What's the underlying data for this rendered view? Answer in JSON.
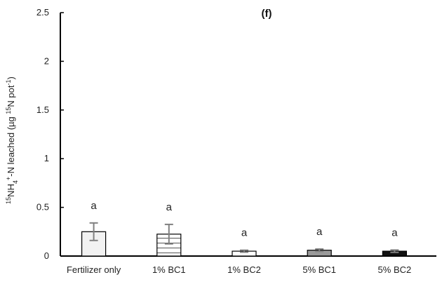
{
  "chart_data": {
    "type": "bar",
    "title": "(f)",
    "ylabel_parts": [
      "15",
      "NH",
      "4",
      "+",
      "-N leached (µg ",
      "15",
      "N pot",
      "-1",
      ")"
    ],
    "xlabel": "",
    "ylim": [
      0,
      2.5
    ],
    "yticks": [
      0,
      0.5,
      1,
      1.5,
      2,
      2.5
    ],
    "ytick_labels": [
      "0",
      "0.5",
      "1",
      "1.5",
      "2",
      "2.5"
    ],
    "grid": false,
    "categories": [
      "Fertilizer only",
      "1% BC1",
      "1% BC2",
      "5% BC1",
      "5% BC2"
    ],
    "values": [
      0.25,
      0.225,
      0.05,
      0.06,
      0.05
    ],
    "errors": [
      0.09,
      0.1,
      0.01,
      0.012,
      0.012
    ],
    "significance": [
      "a",
      "a",
      "a",
      "a",
      "a"
    ],
    "bar_styles": [
      {
        "fill": "#f2f2f2",
        "pattern": "none"
      },
      {
        "fill": "#ffffff",
        "pattern": "horizontal-lines"
      },
      {
        "fill": "#ffffff",
        "pattern": "none"
      },
      {
        "fill": "#9a9a9a",
        "pattern": "none"
      },
      {
        "fill": "#111111",
        "pattern": "none"
      }
    ],
    "error_bar_color": "#808080"
  }
}
